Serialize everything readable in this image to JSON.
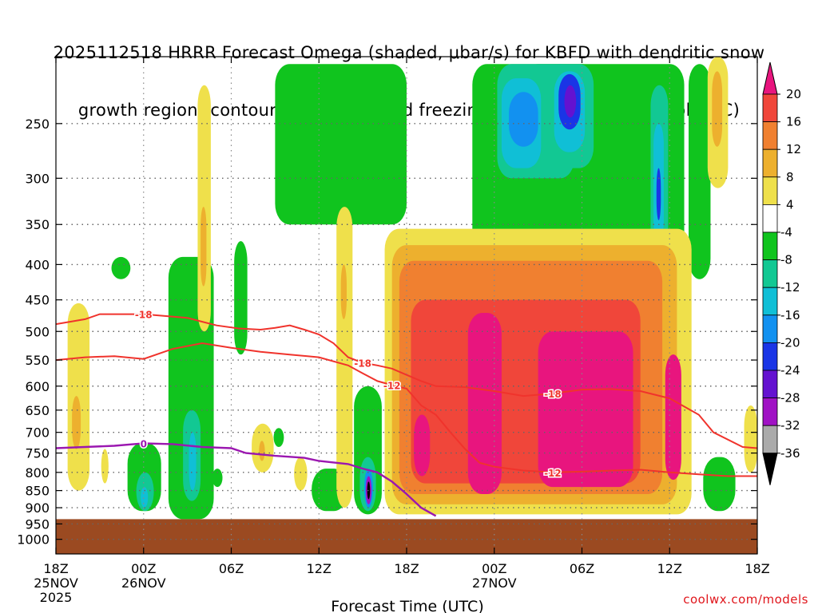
{
  "page": {
    "title_line1": "2025112518 HRRR Forecast Omega (shaded, μbar/s) for KBFD with dendritic snow",
    "title_line2": "growth region (contoured, red, °C) and freezing level (contoured, purple, °C)",
    "credit": "coolwx.com/models"
  },
  "colors": {
    "ground": "#9b4a21",
    "dgz_contour": "#f0332c",
    "freezing_contour": "#9b17b0",
    "grid": "#9a9a9a"
  },
  "chart_data": {
    "type": "heatmap",
    "title": "2025112518 HRRR Forecast Omega (shaded, μbar/s) for KBFD with dendritic snow growth region (contoured, red, °C) and freezing level (contoured, purple, °C)",
    "xlabel": "Forecast Time (UTC)",
    "ylabel": "",
    "x_range_hours": [
      0,
      48
    ],
    "x_ticks": [
      {
        "hour": 0,
        "label": "18Z",
        "date": "25NOV",
        "year": "2025"
      },
      {
        "hour": 6,
        "label": "00Z",
        "date": "26NOV",
        "year": ""
      },
      {
        "hour": 12,
        "label": "06Z",
        "date": "",
        "year": ""
      },
      {
        "hour": 18,
        "label": "12Z",
        "date": "",
        "year": ""
      },
      {
        "hour": 24,
        "label": "18Z",
        "date": "",
        "year": ""
      },
      {
        "hour": 30,
        "label": "00Z",
        "date": "27NOV",
        "year": ""
      },
      {
        "hour": 36,
        "label": "06Z",
        "date": "",
        "year": ""
      },
      {
        "hour": 42,
        "label": "12Z",
        "date": "",
        "year": ""
      },
      {
        "hour": 48,
        "label": "18Z",
        "date": "",
        "year": ""
      }
    ],
    "y_axis": "pressure (hPa), log scale, inverted",
    "y_range_hpa": [
      200,
      1050
    ],
    "y_ticks": [
      250,
      300,
      350,
      400,
      450,
      500,
      550,
      600,
      650,
      700,
      750,
      800,
      850,
      900,
      950,
      1000
    ],
    "surface_pressure_hpa": 935,
    "grid": true,
    "colorbar": {
      "label_values": [
        20,
        16,
        12,
        8,
        4,
        -4,
        -8,
        -12,
        -16,
        -20,
        -24,
        -28,
        -32,
        -36
      ],
      "bins": [
        {
          "from": 20,
          "to": 24,
          "color": "#e8157e"
        },
        {
          "from": 16,
          "to": 20,
          "color": "#f0463a"
        },
        {
          "from": 12,
          "to": 16,
          "color": "#f08030"
        },
        {
          "from": 8,
          "to": 12,
          "color": "#edb02e"
        },
        {
          "from": 4,
          "to": 8,
          "color": "#efe04b"
        },
        {
          "from": -4,
          "to": 4,
          "color": "#ffffff"
        },
        {
          "from": -8,
          "to": -4,
          "color": "#10c41e"
        },
        {
          "from": -12,
          "to": -8,
          "color": "#12c893"
        },
        {
          "from": -16,
          "to": -12,
          "color": "#10bfd6"
        },
        {
          "from": -20,
          "to": -16,
          "color": "#1291f0"
        },
        {
          "from": -24,
          "to": -20,
          "color": "#1a35e6"
        },
        {
          "from": -28,
          "to": -24,
          "color": "#6412d0"
        },
        {
          "from": -32,
          "to": -28,
          "color": "#a012c4"
        },
        {
          "from": -36,
          "to": -32,
          "color": "#aaaaaa"
        },
        {
          "from": -40,
          "to": -36,
          "color": "#000000"
        }
      ]
    },
    "omega_regions": [
      {
        "value": -6,
        "hours": [
          15,
          24
        ],
        "p_top": 205,
        "p_bot": 350
      },
      {
        "value": -6,
        "hours": [
          28.5,
          43
        ],
        "p_top": 205,
        "p_bot": 440
      },
      {
        "value": -6,
        "hours": [
          32,
          37
        ],
        "p_top": 205,
        "p_bot": 330
      },
      {
        "value": -10,
        "hours": [
          30.2,
          35.5
        ],
        "p_top": 205,
        "p_bot": 300
      },
      {
        "value": -14,
        "hours": [
          30.5,
          33.2
        ],
        "p_top": 215,
        "p_bot": 290
      },
      {
        "value": -18,
        "hours": [
          31,
          33
        ],
        "p_top": 225,
        "p_bot": 270
      },
      {
        "value": -10,
        "hours": [
          33.5,
          36.8
        ],
        "p_top": 205,
        "p_bot": 290
      },
      {
        "value": -14,
        "hours": [
          34.1,
          36.2
        ],
        "p_top": 210,
        "p_bot": 275
      },
      {
        "value": -22,
        "hours": [
          34.4,
          35.9
        ],
        "p_top": 212,
        "p_bot": 255
      },
      {
        "value": -26,
        "hours": [
          34.8,
          35.6
        ],
        "p_top": 220,
        "p_bot": 245
      },
      {
        "value": -10,
        "hours": [
          40.7,
          41.9
        ],
        "p_top": 220,
        "p_bot": 420
      },
      {
        "value": -14,
        "hours": [
          40.9,
          41.6
        ],
        "p_top": 250,
        "p_bot": 370
      },
      {
        "value": -22,
        "hours": [
          41.1,
          41.4
        ],
        "p_top": 290,
        "p_bot": 345
      },
      {
        "value": -6,
        "hours": [
          43.3,
          44.8
        ],
        "p_top": 205,
        "p_bot": 420
      },
      {
        "value": -6,
        "hours": [
          3.8,
          5.1
        ],
        "p_top": 390,
        "p_bot": 420
      },
      {
        "value": -6,
        "hours": [
          7.7,
          10.8
        ],
        "p_top": 390,
        "p_bot": 935
      },
      {
        "value": -10,
        "hours": [
          8.7,
          9.9
        ],
        "p_top": 650,
        "p_bot": 880
      },
      {
        "value": -14,
        "hours": [
          9.1,
          9.6
        ],
        "p_top": 700,
        "p_bot": 850
      },
      {
        "value": -6,
        "hours": [
          4.9,
          7.2
        ],
        "p_top": 725,
        "p_bot": 910
      },
      {
        "value": -10,
        "hours": [
          5.5,
          6.7
        ],
        "p_top": 800,
        "p_bot": 910
      },
      {
        "value": -14,
        "hours": [
          5.8,
          6.3
        ],
        "p_top": 840,
        "p_bot": 900
      },
      {
        "value": -6,
        "hours": [
          12.2,
          13.1
        ],
        "p_top": 370,
        "p_bot": 540
      },
      {
        "value": -6,
        "hours": [
          14.9,
          15.6
        ],
        "p_top": 690,
        "p_bot": 735
      },
      {
        "value": -6,
        "hours": [
          17.5,
          20
        ],
        "p_top": 790,
        "p_bot": 910
      },
      {
        "value": -6,
        "hours": [
          20.4,
          22.3
        ],
        "p_top": 600,
        "p_bot": 920
      },
      {
        "value": -10,
        "hours": [
          20.8,
          21.9
        ],
        "p_top": 760,
        "p_bot": 910
      },
      {
        "value": -18,
        "hours": [
          21.1,
          21.7
        ],
        "p_top": 790,
        "p_bot": 900
      },
      {
        "value": -30,
        "hours": [
          21.2,
          21.6
        ],
        "p_top": 810,
        "p_bot": 890
      },
      {
        "value": -38,
        "hours": [
          21.3,
          21.5
        ],
        "p_top": 825,
        "p_bot": 875
      },
      {
        "value": -6,
        "hours": [
          25.2,
          26.8
        ],
        "p_top": 640,
        "p_bot": 920
      },
      {
        "value": -10,
        "hours": [
          25.5,
          26.5
        ],
        "p_top": 665,
        "p_bot": 910
      },
      {
        "value": -18,
        "hours": [
          25.7,
          26.3
        ],
        "p_top": 680,
        "p_bot": 890
      },
      {
        "value": -30,
        "hours": [
          25.8,
          26.2
        ],
        "p_top": 700,
        "p_bot": 830
      },
      {
        "value": -38,
        "hours": [
          25.9,
          26.1
        ],
        "p_top": 715,
        "p_bot": 790
      },
      {
        "value": -6,
        "hours": [
          44.3,
          46.5
        ],
        "p_top": 760,
        "p_bot": 910
      },
      {
        "value": -6,
        "hours": [
          10.7,
          11.4
        ],
        "p_top": 790,
        "p_bot": 840
      },
      {
        "value": 6,
        "hours": [
          0.8,
          2.3
        ],
        "p_top": 455,
        "p_bot": 850
      },
      {
        "value": 10,
        "hours": [
          1.1,
          1.7
        ],
        "p_top": 620,
        "p_bot": 740
      },
      {
        "value": 6,
        "hours": [
          3.1,
          3.6
        ],
        "p_top": 740,
        "p_bot": 830
      },
      {
        "value": 6,
        "hours": [
          9.7,
          10.6
        ],
        "p_top": 220,
        "p_bot": 500
      },
      {
        "value": 10,
        "hours": [
          9.9,
          10.3
        ],
        "p_top": 330,
        "p_bot": 430
      },
      {
        "value": 6,
        "hours": [
          13.4,
          14.9
        ],
        "p_top": 680,
        "p_bot": 800
      },
      {
        "value": 10,
        "hours": [
          13.9,
          14.3
        ],
        "p_top": 720,
        "p_bot": 770
      },
      {
        "value": 6,
        "hours": [
          19.2,
          20.3
        ],
        "p_top": 330,
        "p_bot": 900
      },
      {
        "value": 10,
        "hours": [
          19.5,
          19.9
        ],
        "p_top": 400,
        "p_bot": 480
      },
      {
        "value": 6,
        "hours": [
          16.3,
          17.2
        ],
        "p_top": 760,
        "p_bot": 850
      },
      {
        "value": 6,
        "hours": [
          22.5,
          43.5
        ],
        "p_top": 355,
        "p_bot": 920
      },
      {
        "value": 10,
        "hours": [
          23,
          42.5
        ],
        "p_top": 375,
        "p_bot": 890
      },
      {
        "value": 14,
        "hours": [
          23.5,
          41.5
        ],
        "p_top": 395,
        "p_bot": 860
      },
      {
        "value": 18,
        "hours": [
          24.3,
          40
        ],
        "p_top": 450,
        "p_bot": 830
      },
      {
        "value": 22,
        "hours": [
          24.5,
          25.6
        ],
        "p_top": 660,
        "p_bot": 810
      },
      {
        "value": 22,
        "hours": [
          28.2,
          30.5
        ],
        "p_top": 470,
        "p_bot": 860
      },
      {
        "value": 22,
        "hours": [
          33,
          39.5
        ],
        "p_top": 500,
        "p_bot": 840
      },
      {
        "value": 22,
        "hours": [
          41.7,
          42.8
        ],
        "p_top": 540,
        "p_bot": 820
      },
      {
        "value": 6,
        "hours": [
          44.6,
          46
        ],
        "p_top": 200,
        "p_bot": 310
      },
      {
        "value": 10,
        "hours": [
          44.9,
          45.6
        ],
        "p_top": 210,
        "p_bot": 270
      },
      {
        "value": 6,
        "hours": [
          47.1,
          48
        ],
        "p_top": 640,
        "p_bot": 800
      }
    ],
    "dgz_contours": [
      {
        "label": "-18",
        "points": [
          [
            0,
            488
          ],
          [
            2,
            480
          ],
          [
            3,
            472
          ],
          [
            6,
            472
          ],
          [
            9,
            478
          ],
          [
            11,
            490
          ],
          [
            12.5,
            495
          ],
          [
            14,
            497
          ],
          [
            15,
            494
          ],
          [
            16,
            490
          ],
          [
            17,
            497
          ],
          [
            18,
            505
          ],
          [
            19,
            520
          ],
          [
            20,
            545
          ],
          [
            21,
            555
          ],
          [
            22,
            560
          ],
          [
            23,
            566
          ],
          [
            24,
            578
          ],
          [
            25,
            590
          ],
          [
            26,
            600
          ],
          [
            28,
            602
          ],
          [
            30,
            610
          ],
          [
            32,
            620
          ],
          [
            34,
            615
          ],
          [
            36,
            607
          ],
          [
            38,
            606
          ],
          [
            40,
            610
          ],
          [
            42,
            625
          ],
          [
            44,
            660
          ],
          [
            45,
            700
          ],
          [
            47,
            735
          ],
          [
            48,
            738
          ]
        ],
        "label_at": 6,
        "label2_at": 21,
        "label3_at": 34
      },
      {
        "label": "-12",
        "points": [
          [
            0,
            550
          ],
          [
            2,
            545
          ],
          [
            4,
            543
          ],
          [
            6,
            548
          ],
          [
            8,
            530
          ],
          [
            10,
            520
          ],
          [
            12,
            528
          ],
          [
            14,
            535
          ],
          [
            16,
            540
          ],
          [
            18,
            545
          ],
          [
            20,
            560
          ],
          [
            21,
            575
          ],
          [
            22,
            590
          ],
          [
            23,
            598
          ],
          [
            24,
            605
          ],
          [
            25,
            640
          ],
          [
            26,
            660
          ],
          [
            27,
            700
          ],
          [
            28,
            740
          ],
          [
            29,
            775
          ],
          [
            30,
            785
          ],
          [
            32,
            795
          ],
          [
            34,
            800
          ],
          [
            36,
            798
          ],
          [
            38,
            795
          ],
          [
            40,
            793
          ],
          [
            42,
            800
          ],
          [
            44,
            805
          ],
          [
            46,
            810
          ],
          [
            48,
            810
          ]
        ],
        "label_at": 23,
        "label2_at": 34
      }
    ],
    "freezing_contour": {
      "label": "0",
      "points": [
        [
          0,
          738
        ],
        [
          2,
          735
        ],
        [
          4,
          732
        ],
        [
          6,
          726
        ],
        [
          8,
          728
        ],
        [
          10,
          735
        ],
        [
          12,
          738
        ],
        [
          13,
          750
        ],
        [
          15,
          757
        ],
        [
          17,
          762
        ],
        [
          18,
          770
        ],
        [
          20,
          778
        ],
        [
          21,
          790
        ],
        [
          22,
          800
        ],
        [
          23,
          825
        ],
        [
          24,
          860
        ],
        [
          25,
          900
        ],
        [
          26,
          925
        ]
      ],
      "label_at": 6
    }
  }
}
